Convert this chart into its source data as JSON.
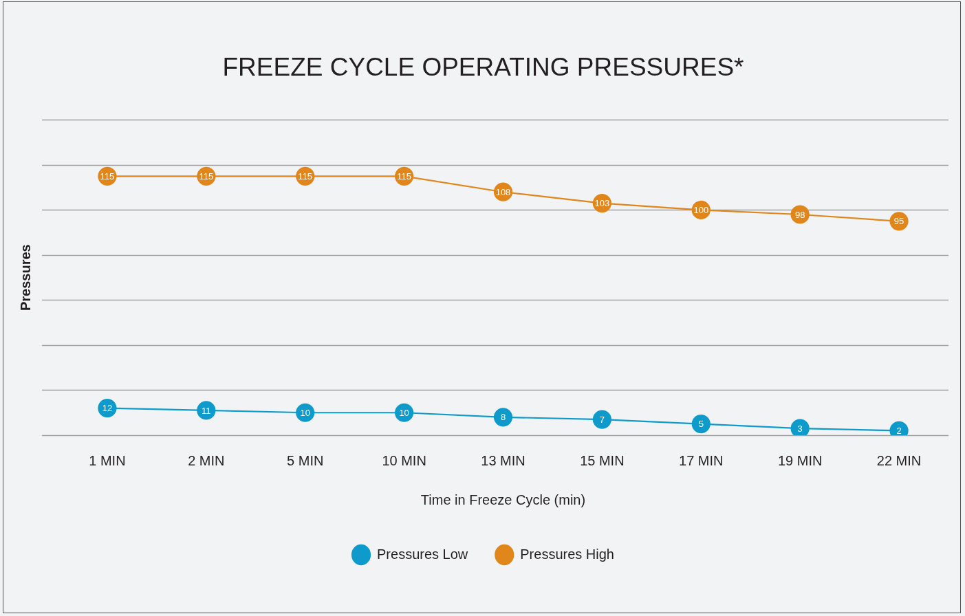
{
  "chart_data": {
    "type": "line",
    "title": "FREEZE CYCLE OPERATING PRESSURES*",
    "xlabel": "Time in Freeze Cycle (min)",
    "ylabel": "Pressures",
    "categories": [
      "1 MIN",
      "2 MIN",
      "5 MIN",
      "10 MIN",
      "13 MIN",
      "15 MIN",
      "17 MIN",
      "19 MIN",
      "22 MIN"
    ],
    "series": [
      {
        "name": "Pressures Low",
        "color": "#0e9bcb",
        "values": [
          12,
          11,
          10,
          10,
          8,
          7,
          5,
          3,
          2
        ]
      },
      {
        "name": "Pressures High",
        "color": "#e0861a",
        "values": [
          115,
          115,
          115,
          115,
          108,
          103,
          100,
          98,
          95
        ]
      }
    ],
    "ylim": [
      0,
      140
    ],
    "yticks": [
      {
        "value": 0,
        "label": null
      },
      {
        "value": 20,
        "label": null
      },
      {
        "value": 40,
        "label": null
      },
      {
        "value": 60,
        "label": null
      },
      {
        "value": 80,
        "label": null
      },
      {
        "value": 100,
        "label": null
      },
      {
        "value": 120,
        "label": null
      },
      {
        "value": 140,
        "label": null
      }
    ],
    "grid": "y",
    "tick_labels": "x",
    "legend": "bottom",
    "marker": "circle",
    "line_style": "solid",
    "data_labels": true
  }
}
